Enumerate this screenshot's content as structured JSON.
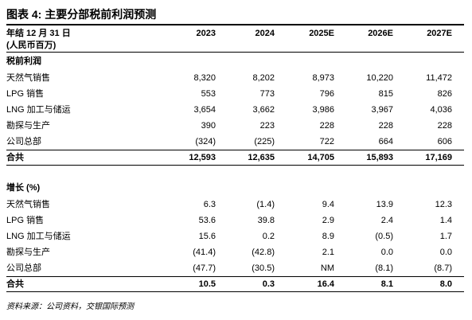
{
  "title": "图表 4: 主要分部税前利润预测",
  "header": {
    "label_lines": [
      "年结 12 月 31 日",
      "(人民币百万)"
    ],
    "columns": [
      "2023",
      "2024",
      "2025E",
      "2026E",
      "2027E"
    ]
  },
  "sections": [
    {
      "heading": "税前利润",
      "rows": [
        {
          "label": "天然气销售",
          "values": [
            "8,320",
            "8,202",
            "8,973",
            "10,220",
            "11,472"
          ]
        },
        {
          "label": "LPG 销售",
          "values": [
            "553",
            "773",
            "796",
            "815",
            "826"
          ]
        },
        {
          "label": "LNG 加工与储运",
          "values": [
            "3,654",
            "3,662",
            "3,986",
            "3,967",
            "4,036"
          ]
        },
        {
          "label": "勘探与生产",
          "values": [
            "390",
            "223",
            "228",
            "228",
            "228"
          ]
        },
        {
          "label": "公司总部",
          "values": [
            "(324)",
            "(225)",
            "722",
            "664",
            "606"
          ]
        }
      ],
      "total": {
        "label": "合共",
        "values": [
          "12,593",
          "12,635",
          "14,705",
          "15,893",
          "17,169"
        ]
      }
    },
    {
      "heading": "增长 (%)",
      "rows": [
        {
          "label": "天然气销售",
          "values": [
            "6.3",
            "(1.4)",
            "9.4",
            "13.9",
            "12.3"
          ]
        },
        {
          "label": "LPG 销售",
          "values": [
            "53.6",
            "39.8",
            "2.9",
            "2.4",
            "1.4"
          ]
        },
        {
          "label": "LNG 加工与储运",
          "values": [
            "15.6",
            "0.2",
            "8.9",
            "(0.5)",
            "1.7"
          ]
        },
        {
          "label": "勘探与生产",
          "values": [
            "(41.4)",
            "(42.8)",
            "2.1",
            "0.0",
            "0.0"
          ]
        },
        {
          "label": "公司总部",
          "values": [
            "(47.7)",
            "(30.5)",
            "NM",
            "(8.1)",
            "(8.7)"
          ]
        }
      ],
      "total": {
        "label": "合共",
        "values": [
          "10.5",
          "0.3",
          "16.4",
          "8.1",
          "8.0"
        ]
      }
    }
  ],
  "source": "资料来源：公司资料，交银国际预测"
}
